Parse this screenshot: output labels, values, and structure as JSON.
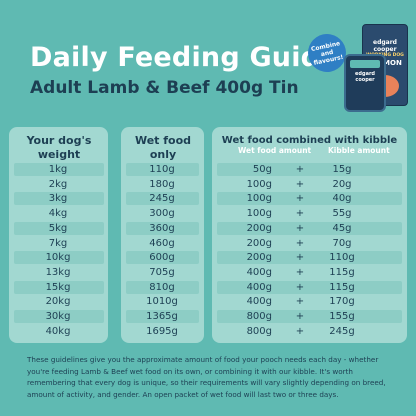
{
  "header": {
    "title": "Daily Feeding Guide",
    "subtitle": "Adult Lamb & Beef 400g Tin"
  },
  "product": {
    "bubble_text": "Combine and flavours!",
    "brand": "edgard cooper",
    "pouch_subtitle": "WORKING DOG",
    "pouch_name": "SALMON"
  },
  "table": {
    "col1_header": "Your dog's weight",
    "col2_header": "Wet food only",
    "col3_header": "Wet food combined with kibble",
    "col3_sub_wet": "Wet food amount",
    "col3_sub_kibble": "Kibble amount",
    "rows": [
      {
        "weight": "1kg",
        "wet_only": "110g",
        "wet": "50g",
        "plus": "+",
        "kibble": "15g"
      },
      {
        "weight": "2kg",
        "wet_only": "180g",
        "wet": "100g",
        "plus": "+",
        "kibble": "20g"
      },
      {
        "weight": "3kg",
        "wet_only": "245g",
        "wet": "100g",
        "plus": "+",
        "kibble": "40g"
      },
      {
        "weight": "4kg",
        "wet_only": "300g",
        "wet": "100g",
        "plus": "+",
        "kibble": "55g"
      },
      {
        "weight": "5kg",
        "wet_only": "360g",
        "wet": "200g",
        "plus": "+",
        "kibble": "45g"
      },
      {
        "weight": "7kg",
        "wet_only": "460g",
        "wet": "200g",
        "plus": "+",
        "kibble": "70g"
      },
      {
        "weight": "10kg",
        "wet_only": "600g",
        "wet": "200g",
        "plus": "+",
        "kibble": "110g"
      },
      {
        "weight": "13kg",
        "wet_only": "705g",
        "wet": "400g",
        "plus": "+",
        "kibble": "115g"
      },
      {
        "weight": "15kg",
        "wet_only": "810g",
        "wet": "400g",
        "plus": "+",
        "kibble": "115g"
      },
      {
        "weight": "20kg",
        "wet_only": "1010g",
        "wet": "400g",
        "plus": "+",
        "kibble": "170g"
      },
      {
        "weight": "30kg",
        "wet_only": "1365g",
        "wet": "800g",
        "plus": "+",
        "kibble": "155g"
      },
      {
        "weight": "40kg",
        "wet_only": "1695g",
        "wet": "800g",
        "plus": "+",
        "kibble": "245g"
      }
    ]
  },
  "footnote": "These guidelines give you the approximate amount of food your pooch needs each day - whether you're feeding Lamb & Beef wet food on its own, or combining it with our kibble. It's worth remembering that every dog is unique, so their requirements will vary slightly depending on breed, amount of activity, and gender. An open packet of wet food will last two or three days.",
  "colors": {
    "background": "#5fbab2",
    "panel": "#a2d8d1",
    "text_dark": "#1d3f53",
    "title": "#ffffff"
  }
}
